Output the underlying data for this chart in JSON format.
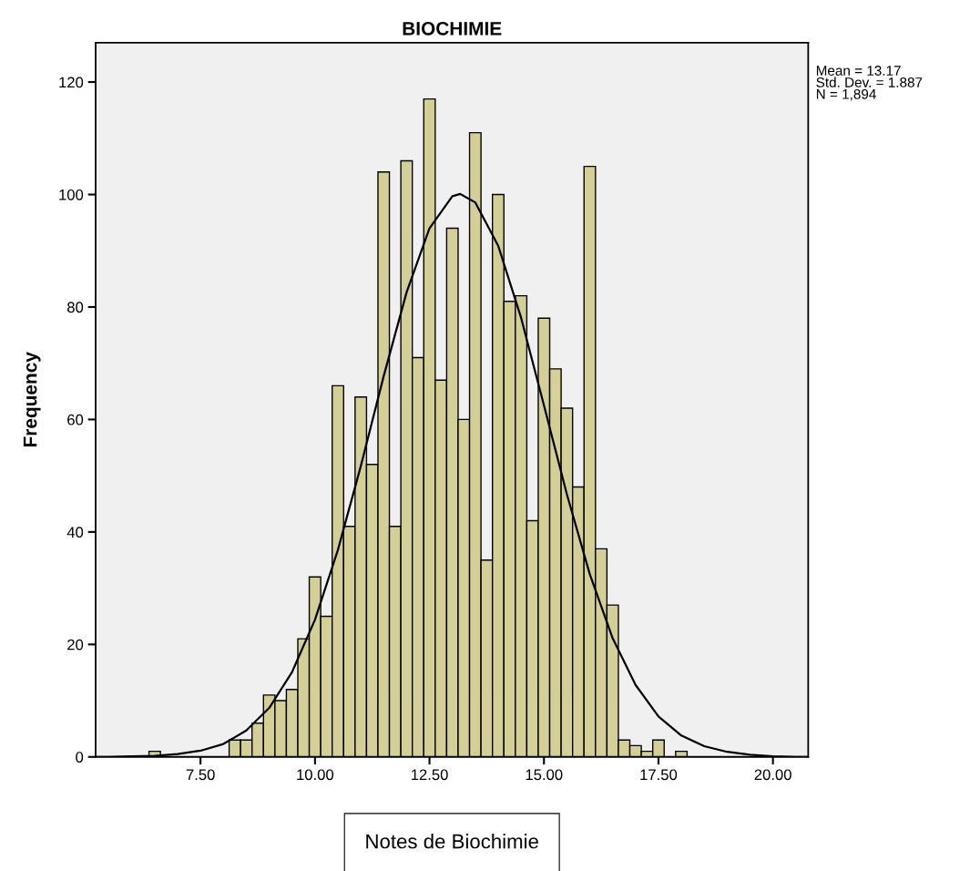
{
  "chart_data": {
    "type": "histogram",
    "title": "BIOCHIMIE",
    "xlabel": "Notes de Biochimie",
    "ylabel": "Frequency",
    "bins": [
      6.375,
      6.625,
      6.875,
      7.125,
      7.375,
      7.625,
      7.875,
      8.125,
      8.375,
      8.625,
      8.875,
      9.125,
      9.375,
      9.625,
      9.875,
      10.125,
      10.375,
      10.625,
      10.875,
      11.125,
      11.375,
      11.625,
      11.875,
      12.125,
      12.375,
      12.625,
      12.875,
      13.125,
      13.375,
      13.625,
      13.875,
      14.125,
      14.375,
      14.625,
      14.875,
      15.125,
      15.375,
      15.625,
      15.875,
      16.125,
      16.375,
      16.625,
      16.875,
      17.125,
      17.375,
      17.625,
      17.875,
      18.125
    ],
    "series": [
      {
        "color": "#d3cf97",
        "values": [
          1,
          0,
          0,
          0,
          0,
          0,
          0,
          3,
          3,
          6,
          11,
          10,
          12,
          21,
          32,
          25,
          66,
          41,
          64,
          52,
          104,
          41,
          106,
          71,
          117,
          67,
          94,
          60,
          111,
          35,
          100,
          81,
          82,
          42,
          78,
          69,
          62,
          48,
          105,
          37,
          27,
          3,
          2,
          1,
          3,
          0,
          1
        ]
      },
      {
        "type": "line",
        "color": "#000000",
        "x": [
          5.25,
          5.5,
          6,
          6.5,
          7,
          7.5,
          8,
          8.5,
          9,
          9.5,
          10,
          10.5,
          11,
          11.5,
          12,
          12.5,
          13,
          13.17,
          13.5,
          14,
          14.5,
          15,
          15.5,
          16,
          16.5,
          17,
          17.5,
          18,
          18.5,
          19,
          19.5,
          20,
          20.5,
          20.75
        ],
        "values": [
          0,
          0,
          0.1,
          0.2,
          0.5,
          1.1,
          2.3,
          4.7,
          8.7,
          15.1,
          24.4,
          36.8,
          51.7,
          67.7,
          82.6,
          94,
          99.7,
          100.1,
          98.6,
          90.9,
          78.1,
          62.5,
          46.7,
          32.5,
          21.1,
          12.8,
          7.2,
          3.8,
          1.9,
          0.9,
          0.4,
          0.1,
          0,
          0
        ]
      }
    ],
    "xlim": [
      5.21,
      20.77
    ],
    "ylim": [
      0,
      127
    ],
    "xticks": [
      {
        "value": 7.5,
        "label": "7.50"
      },
      {
        "value": 10,
        "label": "10.00"
      },
      {
        "value": 12.5,
        "label": "12.50"
      },
      {
        "value": 15,
        "label": "15.00"
      },
      {
        "value": 17.5,
        "label": "17.50"
      },
      {
        "value": 20,
        "label": "20.00"
      }
    ],
    "yticks": [
      0,
      20,
      40,
      60,
      80,
      100,
      120
    ],
    "grid": false,
    "legend": false,
    "annotations": [
      "Mean = 13.17",
      "Std. Dev. = 1.887",
      "N = 1,894"
    ]
  }
}
